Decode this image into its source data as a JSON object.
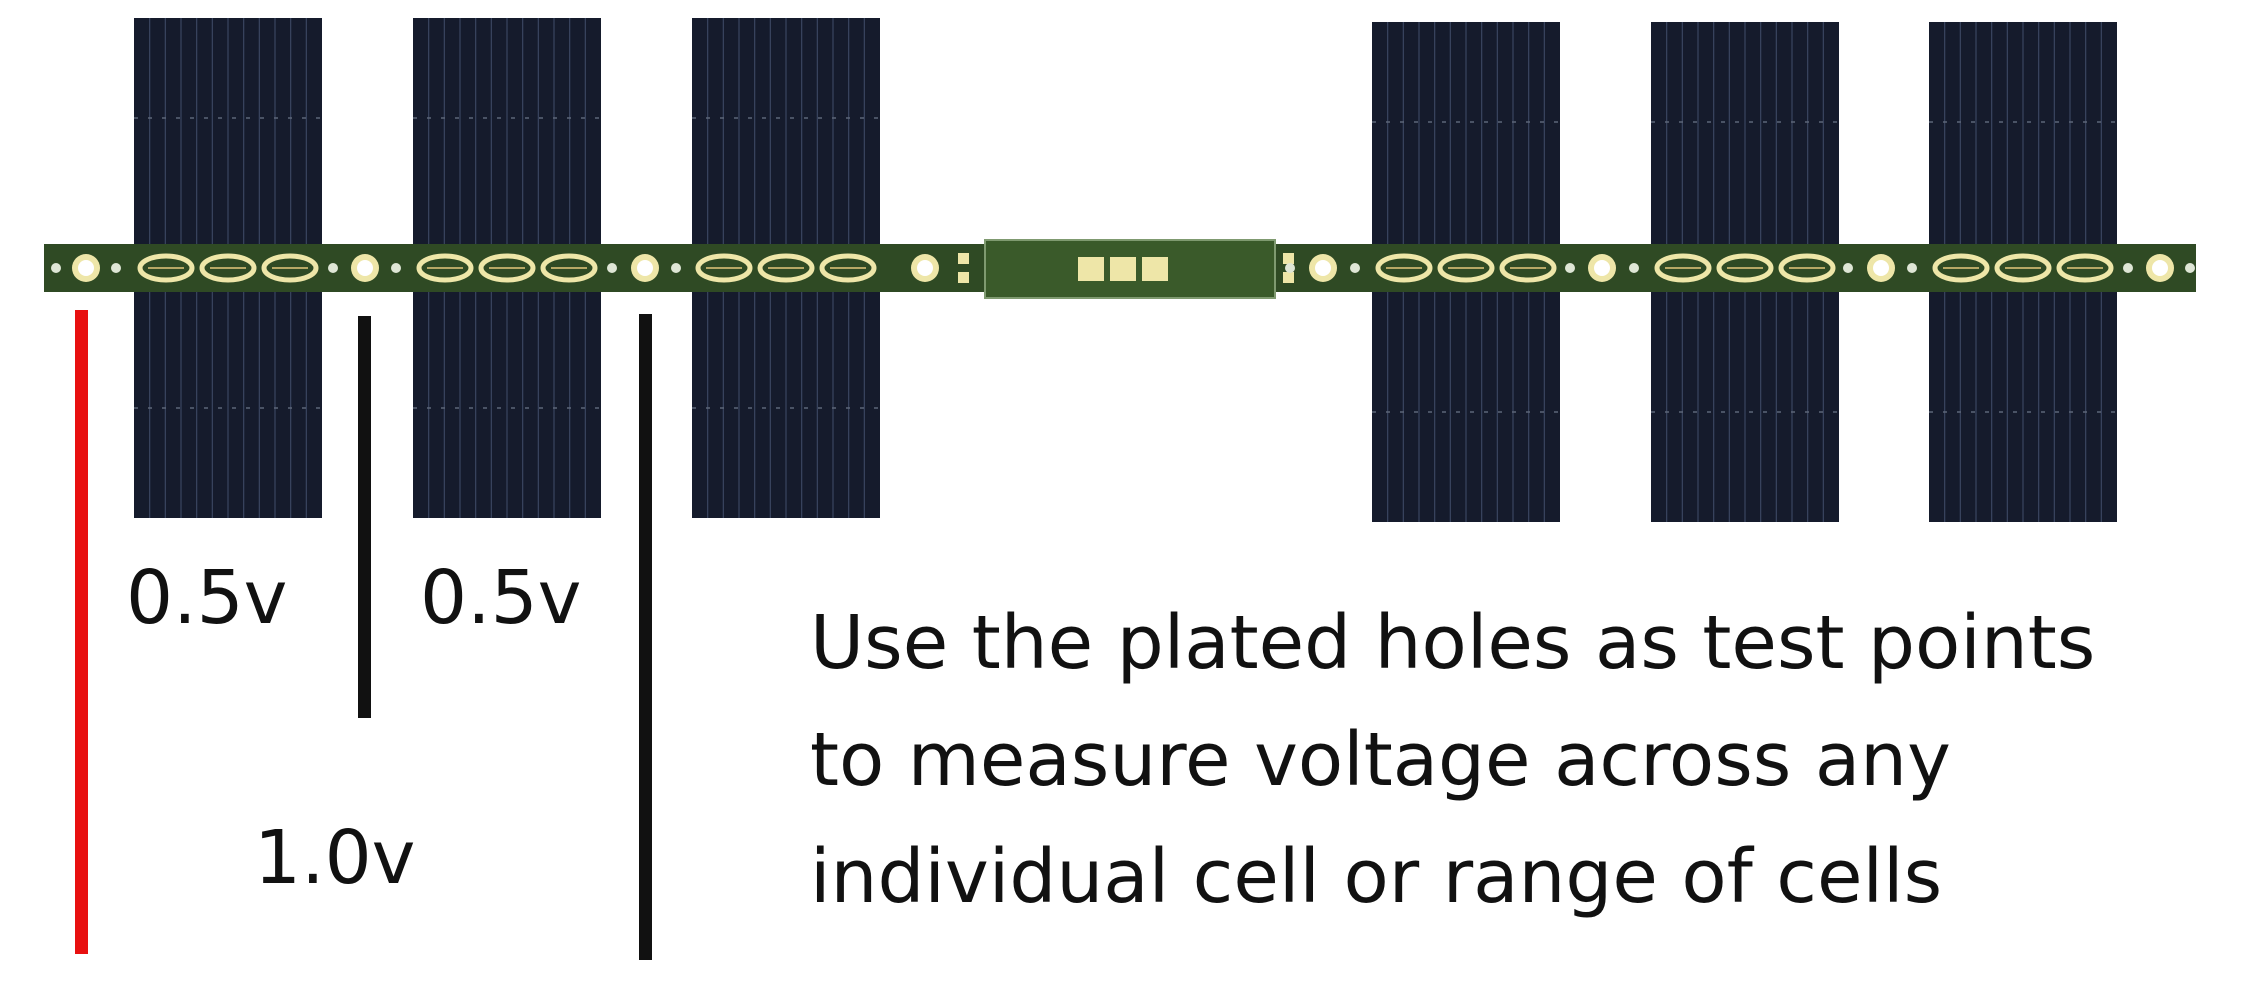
{
  "colors": {
    "cell": "#151b2c",
    "cell_line": "#3a4560",
    "pcb": "#2f4a24",
    "pad": "#eee6a8",
    "measure_primary": "#e81010",
    "measure_secondary": "#111111",
    "text": "#111111"
  },
  "components": {
    "solar_cells_left": 3,
    "solar_cells_right": 3,
    "pcb_strip": "pcb-strip",
    "test_point_icon": "plated-hole-icon"
  },
  "measurements": {
    "cell_1_label": "0.5v",
    "cell_2_label": "0.5v",
    "range_label": "1.0v"
  },
  "note": {
    "line_1": "Use the plated holes as test points",
    "line_2": "to measure voltage across any",
    "line_3": "individual cell or range of cells"
  }
}
